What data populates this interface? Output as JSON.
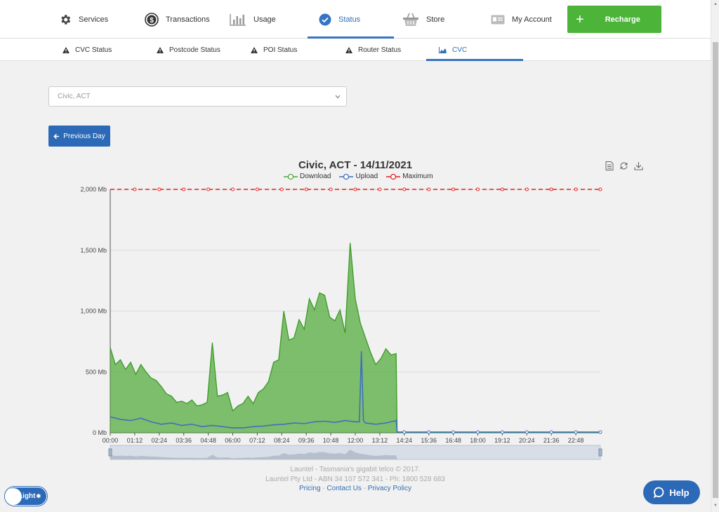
{
  "nav": {
    "items": [
      {
        "label": "Services",
        "icon": "gear-icon"
      },
      {
        "label": "Transactions",
        "icon": "dollar-coin-icon"
      },
      {
        "label": "Usage",
        "icon": "bar-chart-icon"
      },
      {
        "label": "Status",
        "icon": "check-circle-icon",
        "active": true
      },
      {
        "label": "Store",
        "icon": "basket-icon"
      },
      {
        "label": "My Account",
        "icon": "id-card-icon"
      }
    ],
    "recharge_label": "Recharge"
  },
  "subnav": {
    "items": [
      {
        "label": "CVC Status",
        "icon": "warning-icon"
      },
      {
        "label": "Postcode Status",
        "icon": "warning-icon"
      },
      {
        "label": "POI Status",
        "icon": "warning-icon"
      },
      {
        "label": "Router Status",
        "icon": "warning-icon"
      },
      {
        "label": "CVC",
        "icon": "area-chart-icon",
        "active": true
      }
    ]
  },
  "select": {
    "value": "Civic, ACT"
  },
  "prev_day_label": "Previous Day",
  "colors": {
    "download": "#4aa832",
    "upload": "#3f6fbf",
    "maximum": "#e32020",
    "accent": "#2c6ab8",
    "recharge": "#4db43a"
  },
  "chart_data": {
    "type": "area",
    "title": "Civic, ACT - 14/11/2021",
    "legend": [
      "Download",
      "Upload",
      "Maximum"
    ],
    "legend_position": "top-center",
    "y_unit": "Mb",
    "ylim": [
      0,
      2000
    ],
    "yticks": [
      "0 Mb",
      "500 Mb",
      "1,000 Mb",
      "1,500 Mb",
      "2,000 Mb"
    ],
    "ytick_values": [
      0,
      500,
      1000,
      1500,
      2000
    ],
    "xticks": [
      "00:00",
      "01:12",
      "02:24",
      "03:36",
      "04:48",
      "06:00",
      "07:12",
      "08:24",
      "09:36",
      "10:48",
      "12:00",
      "13:12",
      "14:24",
      "15:36",
      "16:48",
      "18:00",
      "19:12",
      "20:24",
      "21:36",
      "22:48"
    ],
    "xlim_hours": [
      0,
      24
    ],
    "grid": true,
    "series": [
      {
        "name": "Download",
        "x_hours": [
          0,
          0.25,
          0.5,
          0.75,
          1,
          1.25,
          1.5,
          1.75,
          2,
          2.25,
          2.5,
          2.75,
          3,
          3.25,
          3.5,
          3.75,
          4,
          4.25,
          4.5,
          4.75,
          5,
          5.25,
          5.5,
          5.75,
          6,
          6.25,
          6.5,
          6.75,
          7,
          7.25,
          7.5,
          7.75,
          8,
          8.25,
          8.5,
          8.75,
          9,
          9.25,
          9.5,
          9.75,
          10,
          10.25,
          10.5,
          10.75,
          11,
          11.25,
          11.5,
          11.75,
          12,
          12.25,
          12.5,
          12.75,
          13,
          13.25,
          13.5,
          13.75,
          14,
          14.05,
          24
        ],
        "values": [
          700,
          560,
          600,
          520,
          580,
          480,
          560,
          500,
          450,
          430,
          380,
          320,
          300,
          250,
          260,
          240,
          270,
          220,
          230,
          250,
          740,
          300,
          310,
          330,
          180,
          220,
          240,
          300,
          240,
          330,
          360,
          420,
          580,
          600,
          1000,
          760,
          780,
          930,
          850,
          1100,
          1010,
          1150,
          1130,
          950,
          920,
          1010,
          820,
          1560,
          1100,
          900,
          780,
          660,
          560,
          610,
          690,
          640,
          650,
          0,
          0
        ]
      },
      {
        "name": "Upload",
        "x_hours": [
          0,
          0.5,
          1,
          1.5,
          2,
          2.5,
          3,
          3.5,
          4,
          4.5,
          5,
          5.5,
          6,
          6.5,
          7,
          7.5,
          8,
          8.5,
          9,
          9.5,
          10,
          10.5,
          11,
          11.5,
          12,
          12.2,
          12.3,
          12.4,
          12.5,
          13,
          13.5,
          14,
          14.05,
          24
        ],
        "values": [
          130,
          110,
          100,
          120,
          90,
          70,
          80,
          60,
          70,
          50,
          60,
          50,
          40,
          40,
          50,
          55,
          65,
          70,
          80,
          75,
          90,
          95,
          85,
          100,
          90,
          90,
          670,
          100,
          80,
          70,
          80,
          100,
          5,
          5
        ]
      },
      {
        "name": "Maximum",
        "x_hours": [
          0,
          24
        ],
        "values": [
          2000,
          2000
        ]
      }
    ]
  },
  "footer": {
    "line1": "Launtel - Tasmania's gigabit telco © 2017.",
    "line2": "Launtel Pty Ltd - ABN 34 107 572 341 - Ph: 1800 528 683",
    "links": [
      "Pricing",
      "Contact Us",
      "Privacy Policy"
    ],
    "sep": " - "
  },
  "light_label": "Light",
  "help_label": "Help"
}
